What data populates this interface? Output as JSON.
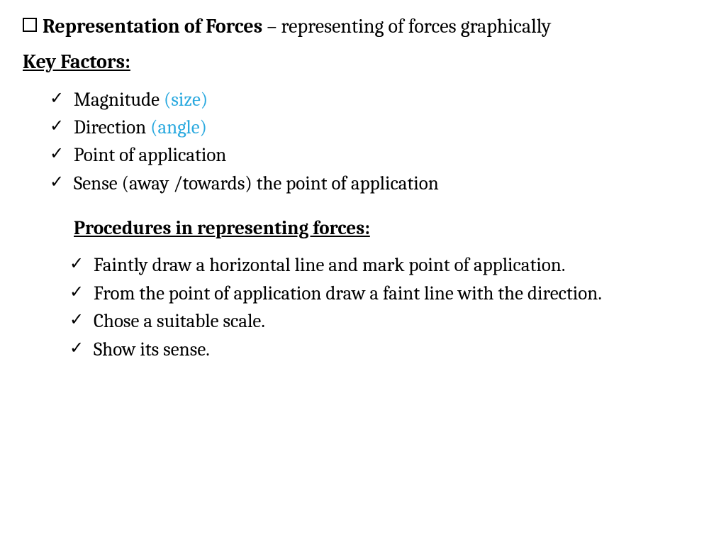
{
  "title": {
    "bold_part": "Representation of Forces",
    "rest": " – representing of forces graphically"
  },
  "key_factors_heading": "Key Factors:",
  "key_factors": [
    {
      "text": "Magnitude ",
      "accent": "(size)"
    },
    {
      "text": "Direction ",
      "accent": "(angle)"
    },
    {
      "text": "Point of application",
      "accent": ""
    },
    {
      "text": "Sense (away /towards) the point of application",
      "accent": ""
    }
  ],
  "procedures_heading": "Procedures in representing forces:",
  "procedures": [
    "Faintly draw a horizontal line and mark point of application.",
    "From the point of application draw a faint line with the direction.",
    "Chose a suitable scale.",
    "Show its sense."
  ],
  "colors": {
    "text": "#000000",
    "accent": "#2aa9df",
    "background": "#ffffff"
  },
  "typography": {
    "body_fontsize": 27,
    "title_fontsize": 28,
    "font_family": "Cambria/serif"
  }
}
